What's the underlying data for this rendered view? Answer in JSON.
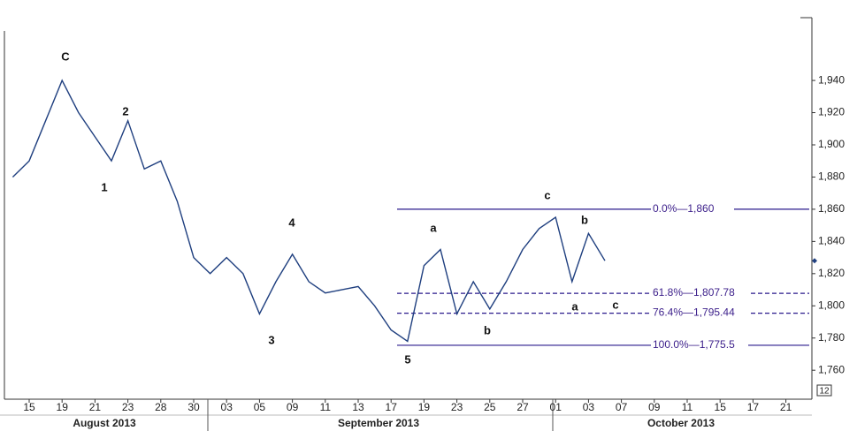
{
  "chart_data": {
    "type": "line",
    "categories": [
      null,
      "15",
      null,
      "19",
      null,
      "21",
      null,
      "23",
      null,
      "28",
      null,
      "30",
      null,
      "03",
      null,
      "05",
      null,
      "09",
      null,
      "11",
      null,
      "13",
      null,
      "17",
      null,
      "19",
      null,
      "23",
      null,
      "25",
      null,
      "27",
      null,
      "01",
      null,
      "03",
      null,
      "07",
      null,
      "09",
      null,
      "11",
      null,
      "15",
      null,
      "17",
      null,
      "21"
    ],
    "months": [
      "August 2013",
      "September 2013",
      "October 2013"
    ],
    "series": [
      {
        "color": "#1f3f7f",
        "values": [
          1880,
          1890,
          1915,
          1940,
          1920,
          1905,
          1890,
          1915,
          1885,
          1890,
          1865,
          1830,
          1820,
          1830,
          1820,
          1795,
          1815,
          1832,
          1815,
          1808,
          1810,
          1812,
          1800,
          1785,
          1778,
          1825,
          1835,
          1795,
          1815,
          1798,
          1815,
          1835,
          1848,
          1855,
          1815,
          1845,
          1828,
          null,
          null,
          null,
          null,
          null,
          null,
          null,
          null,
          null,
          null,
          null
        ]
      }
    ],
    "ylim": [
      1742,
      1979
    ],
    "yticks": [
      {
        "value": 1760,
        "label": "1,760"
      },
      {
        "value": 1780,
        "label": "1,780"
      },
      {
        "value": 1800,
        "label": "1,800"
      },
      {
        "value": 1820,
        "label": "1,820"
      },
      {
        "value": 1840,
        "label": "1,840"
      },
      {
        "value": 1860,
        "label": "1,860"
      },
      {
        "value": 1880,
        "label": "1,880"
      },
      {
        "value": 1900,
        "label": "1,900"
      },
      {
        "value": 1920,
        "label": "1,920"
      },
      {
        "value": 1940,
        "label": "1,940"
      }
    ],
    "levels": [
      {
        "ratio": "0.0%",
        "value": 1860,
        "label": "1,860"
      },
      {
        "ratio": "61.8%",
        "value": 1807.78,
        "label": "1,807.78"
      },
      {
        "ratio": "76.4%",
        "value": 1795.44,
        "label": "1,795.44"
      },
      {
        "ratio": "100.0%",
        "value": 1775.5,
        "label": "1,775.5"
      }
    ],
    "annotations": [
      "C",
      "2",
      "1",
      "4",
      "3",
      "5",
      "a",
      "b",
      "c",
      "b",
      "a",
      "c"
    ],
    "corner_label": "12"
  }
}
